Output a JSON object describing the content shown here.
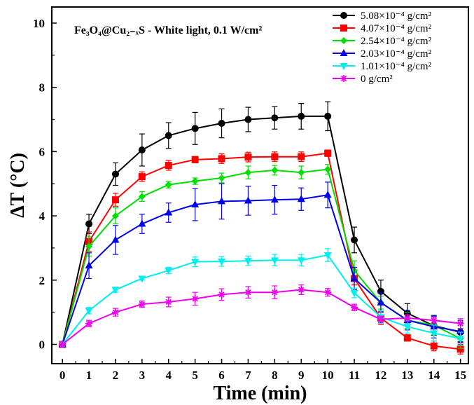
{
  "chart_data": {
    "type": "line",
    "title": "Fe₃O₄@Cu₂₋ₓS - White light, 0.1 W/cm²",
    "xlabel": "Time (min)",
    "ylabel": "ΔT (°C)",
    "xlim": [
      -0.4,
      15.3
    ],
    "ylim": [
      -0.6,
      10.5
    ],
    "x_ticks": [
      0,
      1,
      2,
      3,
      4,
      5,
      6,
      7,
      8,
      9,
      10,
      11,
      12,
      13,
      14,
      15
    ],
    "y_ticks": [
      0,
      2,
      4,
      6,
      8,
      10
    ],
    "x_tick_labels": [
      "0",
      "1",
      "2",
      "3",
      "4",
      "5",
      "6",
      "7",
      "8",
      "9",
      "10",
      "11",
      "12",
      "13",
      "14",
      "15"
    ],
    "y_tick_labels": [
      "0",
      "2",
      "4",
      "6",
      "8",
      "10"
    ],
    "legend_position": "top-right",
    "grid": false,
    "x": [
      0,
      1,
      2,
      3,
      4,
      5,
      6,
      7,
      8,
      9,
      10,
      11,
      12,
      13,
      14,
      15
    ],
    "series": [
      {
        "name": "5.08×10⁻⁴ g/cm²",
        "color": "#000000",
        "marker": "circle",
        "values": [
          0,
          3.75,
          5.3,
          6.05,
          6.5,
          6.72,
          6.88,
          7.0,
          7.05,
          7.1,
          7.1,
          3.25,
          1.65,
          0.97,
          0.58,
          0.38
        ],
        "errors": [
          0.05,
          0.3,
          0.35,
          0.5,
          0.4,
          0.5,
          0.45,
          0.38,
          0.35,
          0.4,
          0.45,
          0.4,
          0.35,
          0.3,
          0.3,
          0.3
        ]
      },
      {
        "name": "4.07×10⁻⁴ g/cm²",
        "color": "#ff0000",
        "marker": "square",
        "values": [
          0,
          3.2,
          4.5,
          5.22,
          5.57,
          5.75,
          5.78,
          5.83,
          5.84,
          5.84,
          5.95,
          2.05,
          0.82,
          0.2,
          -0.05,
          -0.15
        ],
        "errors": [
          0.05,
          0.3,
          0.2,
          0.15,
          0.15,
          0.1,
          0.15,
          0.15,
          0.15,
          0.15,
          0.1,
          0.2,
          0.2,
          0.1,
          0.15,
          0.15
        ]
      },
      {
        "name": "2.54×10⁻⁴ g/cm²",
        "color": "#00dd00",
        "marker": "diamond",
        "values": [
          0,
          3.05,
          4.0,
          4.6,
          4.97,
          5.08,
          5.18,
          5.35,
          5.42,
          5.35,
          5.45,
          2.3,
          1.3,
          0.75,
          0.6,
          0.18
        ],
        "errors": [
          0.05,
          0.3,
          0.25,
          0.15,
          0.1,
          0.1,
          0.15,
          0.2,
          0.15,
          0.2,
          0.15,
          0.3,
          0.2,
          0.25,
          0.3,
          0.3
        ]
      },
      {
        "name": "2.03×10⁻⁴ g/cm²",
        "color": "#0000ee",
        "marker": "triangle-up",
        "values": [
          0,
          2.45,
          3.25,
          3.75,
          4.1,
          4.35,
          4.45,
          4.47,
          4.5,
          4.52,
          4.65,
          2.05,
          1.3,
          0.75,
          0.55,
          0.4
        ],
        "errors": [
          0.05,
          0.4,
          0.45,
          0.3,
          0.3,
          0.5,
          0.55,
          0.45,
          0.45,
          0.35,
          0.4,
          0.35,
          0.3,
          0.3,
          0.35,
          0.35
        ]
      },
      {
        "name": "1.01×10⁻⁴ g/cm²",
        "color": "#00eeee",
        "marker": "triangle-down",
        "values": [
          0,
          1.05,
          1.7,
          2.05,
          2.3,
          2.57,
          2.58,
          2.6,
          2.62,
          2.62,
          2.78,
          1.6,
          0.85,
          0.55,
          0.35,
          0.18
        ],
        "errors": [
          0.05,
          0.1,
          0.08,
          0.05,
          0.1,
          0.15,
          0.15,
          0.15,
          0.18,
          0.18,
          0.2,
          0.15,
          0.2,
          0.2,
          0.25,
          0.2
        ]
      },
      {
        "name": "0 g/cm²",
        "color": "#ee00ee",
        "marker": "star",
        "values": [
          0,
          0.65,
          1.0,
          1.25,
          1.32,
          1.42,
          1.55,
          1.62,
          1.62,
          1.7,
          1.62,
          1.15,
          0.78,
          0.82,
          0.75,
          0.65
        ],
        "errors": [
          0.05,
          0.1,
          0.12,
          0.1,
          0.15,
          0.2,
          0.18,
          0.18,
          0.2,
          0.15,
          0.12,
          0.1,
          0.1,
          0.1,
          0.1,
          0.15
        ]
      }
    ]
  }
}
